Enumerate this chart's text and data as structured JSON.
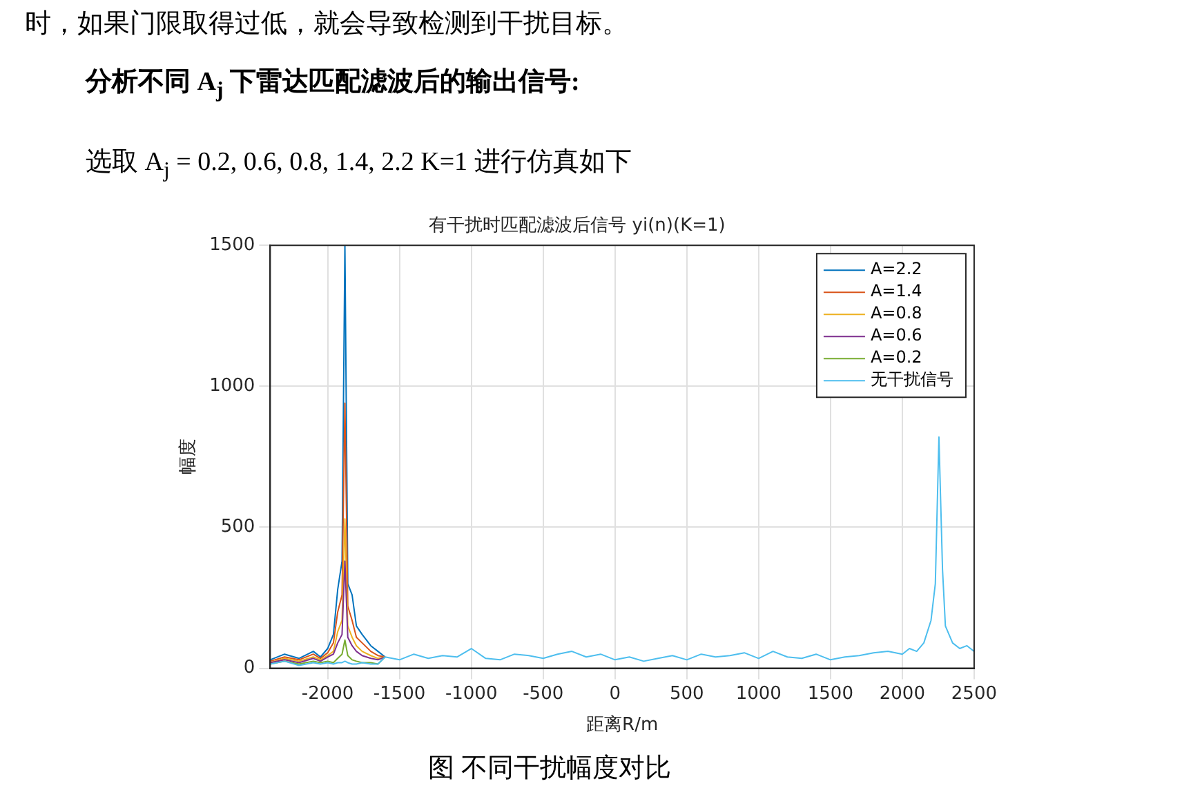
{
  "chart_data": {
    "type": "line",
    "title": "有干扰时匹配滤波后信号 yi(n)(K=1)",
    "xlabel": "距离R/m",
    "ylabel": "幅度",
    "annotations": [
      "时，如果门限取得过低，就会导致检测到干扰目标。",
      "分析不同 A$_{j}$ 下雷达匹配滤波后的输出信号:",
      "选取 A$_{j}$ = 0.2, 0.6, 0.8, 1.4, 2.2 K=1 进行仿真如下",
      "图 不同干扰幅度对比"
    ],
    "x": [
      -2400,
      -2300,
      -2200,
      -2100,
      -2050,
      -2000,
      -1960,
      -1930,
      -1900,
      -1880,
      -1860,
      -1830,
      -1800,
      -1760,
      -1700,
      -1650,
      -1600,
      -1500,
      -1400,
      -1300,
      -1200,
      -1100,
      -1000,
      -900,
      -800,
      -700,
      -600,
      -500,
      -400,
      -300,
      -200,
      -100,
      0,
      100,
      200,
      300,
      400,
      500,
      600,
      700,
      800,
      900,
      1000,
      1100,
      1200,
      1300,
      1400,
      1500,
      1600,
      1700,
      1800,
      1900,
      2000,
      2050,
      2100,
      2150,
      2200,
      2230,
      2255,
      2280,
      2300,
      2350,
      2400,
      2450,
      2500
    ],
    "series": [
      {
        "name": "A=2.2",
        "color": "#0072bd",
        "values": [
          30,
          50,
          35,
          60,
          40,
          70,
          120,
          280,
          380,
          1500,
          300,
          260,
          150,
          120,
          80,
          60,
          40,
          null,
          null,
          null,
          null,
          null,
          null,
          null,
          null,
          null,
          null,
          null,
          null,
          null,
          null,
          null,
          null,
          null,
          null,
          null,
          null,
          null,
          null,
          null,
          null,
          null,
          null,
          null,
          null,
          null,
          null,
          null,
          null,
          null,
          null,
          null,
          null,
          null,
          null,
          null,
          null,
          null,
          null,
          null,
          null,
          null,
          null,
          null,
          null
        ]
      },
      {
        "name": "A=1.4",
        "color": "#d95319",
        "values": [
          25,
          40,
          30,
          50,
          35,
          55,
          90,
          200,
          260,
          940,
          220,
          170,
          110,
          90,
          60,
          45,
          40,
          null,
          null,
          null,
          null,
          null,
          null,
          null,
          null,
          null,
          null,
          null,
          null,
          null,
          null,
          null,
          null,
          null,
          null,
          null,
          null,
          null,
          null,
          null,
          null,
          null,
          null,
          null,
          null,
          null,
          null,
          null,
          null,
          null,
          null,
          null,
          null,
          null,
          null,
          null,
          null,
          null,
          null,
          null,
          null,
          null,
          null,
          null,
          null
        ]
      },
      {
        "name": "A=0.8",
        "color": "#edb120",
        "values": [
          20,
          35,
          25,
          40,
          30,
          45,
          60,
          130,
          170,
          530,
          150,
          110,
          80,
          60,
          45,
          35,
          40,
          null,
          null,
          null,
          null,
          null,
          null,
          null,
          null,
          null,
          null,
          null,
          null,
          null,
          null,
          null,
          null,
          null,
          null,
          null,
          null,
          null,
          null,
          null,
          null,
          null,
          null,
          null,
          null,
          null,
          null,
          null,
          null,
          null,
          null,
          null,
          null,
          null,
          null,
          null,
          null,
          null,
          null,
          null,
          null,
          null,
          null,
          null,
          null
        ]
      },
      {
        "name": "A=0.6",
        "color": "#7e2f8e",
        "values": [
          20,
          30,
          20,
          35,
          25,
          40,
          50,
          90,
          120,
          380,
          110,
          80,
          60,
          45,
          35,
          30,
          40,
          null,
          null,
          null,
          null,
          null,
          null,
          null,
          null,
          null,
          null,
          null,
          null,
          null,
          null,
          null,
          null,
          null,
          null,
          null,
          null,
          null,
          null,
          null,
          null,
          null,
          null,
          null,
          null,
          null,
          null,
          null,
          null,
          null,
          null,
          null,
          null,
          null,
          null,
          null,
          null,
          null,
          null,
          null,
          null,
          null,
          null,
          null,
          null
        ]
      },
      {
        "name": "A=0.2",
        "color": "#77ac30",
        "values": [
          15,
          25,
          15,
          25,
          20,
          25,
          20,
          35,
          50,
          100,
          45,
          30,
          25,
          20,
          20,
          15,
          40,
          null,
          null,
          null,
          null,
          null,
          null,
          null,
          null,
          null,
          null,
          null,
          null,
          null,
          null,
          null,
          null,
          null,
          null,
          null,
          null,
          null,
          null,
          null,
          null,
          null,
          null,
          null,
          null,
          null,
          null,
          null,
          null,
          null,
          null,
          null,
          null,
          null,
          null,
          null,
          null,
          null,
          null,
          null,
          null,
          null,
          null,
          null,
          null
        ]
      },
      {
        "name": "无干扰信号",
        "color": "#4dbeee",
        "values": [
          15,
          25,
          10,
          20,
          15,
          20,
          15,
          20,
          20,
          25,
          20,
          15,
          15,
          20,
          15,
          15,
          40,
          30,
          50,
          35,
          45,
          40,
          70,
          35,
          30,
          50,
          45,
          35,
          50,
          60,
          40,
          50,
          30,
          40,
          25,
          35,
          45,
          30,
          50,
          40,
          45,
          55,
          35,
          60,
          40,
          35,
          50,
          30,
          40,
          45,
          55,
          60,
          50,
          70,
          60,
          90,
          170,
          300,
          820,
          350,
          150,
          90,
          70,
          80,
          60
        ]
      }
    ],
    "xlim": [
      -2400,
      2500
    ],
    "xticks": [
      -2000,
      -1500,
      -1000,
      -500,
      0,
      500,
      1000,
      1500,
      2000,
      2500
    ],
    "ylim": [
      0,
      1500
    ],
    "yticks": [
      0,
      500,
      1000,
      1500
    ],
    "grid": true,
    "legend": "top right",
    "marker": "none",
    "line_style": "solid"
  }
}
